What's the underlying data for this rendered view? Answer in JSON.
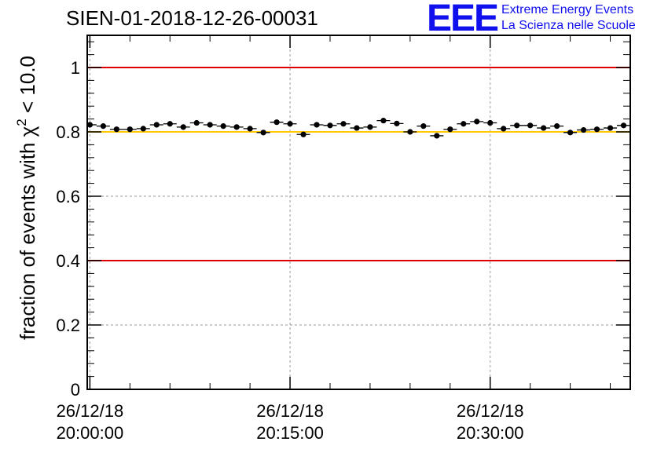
{
  "header": {
    "title": "SIEN-01-2018-12-26-00031",
    "logo_mark": "EEE",
    "logo_line1": "Extreme Energy Events",
    "logo_line2": "La Scienza nelle Scuole"
  },
  "colors": {
    "limit_line": "#dd0000",
    "reference_line": "#ffc800",
    "grid": "#999999",
    "marker": "#000000",
    "logo": "#1010ee"
  },
  "chart_data": {
    "type": "scatter",
    "title": "SIEN-01-2018-12-26-00031",
    "ylabel_main": "fraction of events with χ",
    "ylabel_sup": "2",
    "ylabel_tail": " < 10.0",
    "xlabel": "",
    "ylim": [
      0,
      1.1
    ],
    "xlim_minutes": [
      -0.2,
      40.5
    ],
    "y_ticks": [
      {
        "value": 0,
        "label": "0"
      },
      {
        "value": 0.2,
        "label": "0.2"
      },
      {
        "value": 0.4,
        "label": "0.4"
      },
      {
        "value": 0.6,
        "label": "0.6"
      },
      {
        "value": 0.8,
        "label": "0.8"
      },
      {
        "value": 1,
        "label": "1"
      }
    ],
    "x_ticks": [
      {
        "minutes": 0,
        "date": "26/12/18",
        "time": "20:00:00"
      },
      {
        "minutes": 15,
        "date": "26/12/18",
        "time": "20:15:00"
      },
      {
        "minutes": 30,
        "date": "26/12/18",
        "time": "20:30:00"
      }
    ],
    "grid": true,
    "horizontal_lines": [
      {
        "y": 1.0,
        "color": "#dd0000"
      },
      {
        "y": 0.8,
        "color": "#ffc800"
      },
      {
        "y": 0.4,
        "color": "#dd0000"
      }
    ],
    "bin_width_minutes": 1,
    "x_minutes": [
      0,
      1,
      2,
      3,
      4,
      5,
      6,
      7,
      8,
      9,
      10,
      11,
      12,
      13,
      14,
      15,
      16,
      17,
      18,
      19,
      20,
      21,
      22,
      23,
      24,
      25,
      26,
      27,
      28,
      29,
      30,
      31,
      32,
      33,
      34,
      35,
      36,
      37,
      38,
      39,
      40
    ],
    "values": [
      0.822,
      0.818,
      0.808,
      0.808,
      0.81,
      0.822,
      0.825,
      0.815,
      0.828,
      0.822,
      0.818,
      0.815,
      0.81,
      0.798,
      0.83,
      0.825,
      0.792,
      0.822,
      0.82,
      0.825,
      0.812,
      0.815,
      0.835,
      0.826,
      0.8,
      0.818,
      0.788,
      0.808,
      0.825,
      0.832,
      0.828,
      0.81,
      0.82,
      0.82,
      0.812,
      0.818,
      0.798,
      0.806,
      0.808,
      0.812,
      0.82
    ],
    "errors": [
      0.008,
      0.008,
      0.008,
      0.008,
      0.008,
      0.008,
      0.008,
      0.008,
      0.008,
      0.008,
      0.008,
      0.008,
      0.008,
      0.008,
      0.008,
      0.008,
      0.008,
      0.008,
      0.008,
      0.008,
      0.008,
      0.008,
      0.008,
      0.008,
      0.008,
      0.008,
      0.008,
      0.008,
      0.008,
      0.008,
      0.008,
      0.008,
      0.008,
      0.008,
      0.008,
      0.008,
      0.008,
      0.008,
      0.008,
      0.008,
      0.008
    ]
  }
}
